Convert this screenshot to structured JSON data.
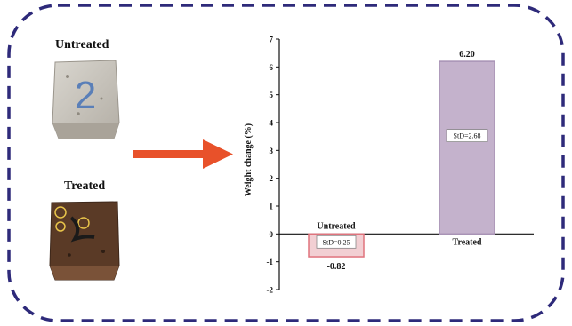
{
  "samples": {
    "untreated_label": "Untreated",
    "treated_label": "Treated",
    "untreated_marking": "2"
  },
  "colors": {
    "frame": "#2e2a7a",
    "arrow": "#e8512a",
    "untreated_bar": "#f2cfd3",
    "untreated_bar_edge": "#e0737d",
    "treated_bar": "#c4b2cc",
    "treated_bar_edge": "#a893b5"
  },
  "icons": [
    "right-arrow-icon"
  ],
  "chart_data": {
    "type": "bar",
    "categories": [
      "Untreated",
      "Treated"
    ],
    "values": [
      -0.82,
      6.2
    ],
    "value_labels": [
      "-0.82",
      "6.20"
    ],
    "std_labels": [
      "StD=0.25",
      "StD=2.68"
    ],
    "ylabel": "Weight change (%)",
    "ylim": [
      -2,
      7
    ],
    "yticks": [
      -2,
      -1,
      0,
      1,
      2,
      3,
      4,
      5,
      6,
      7
    ],
    "grid": false,
    "legend": "none"
  }
}
